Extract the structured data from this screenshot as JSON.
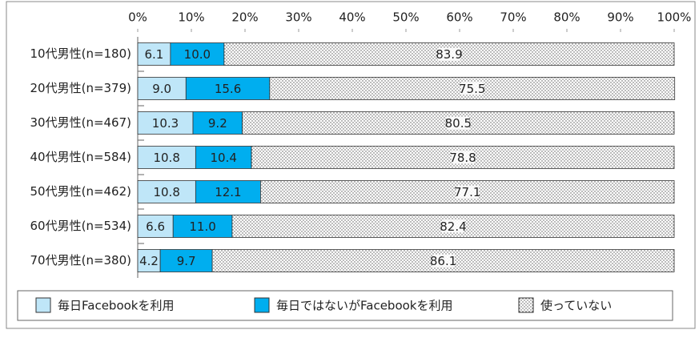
{
  "chart_data": {
    "type": "stacked-bar-horizontal",
    "categories": [
      "10代男性(n=180)",
      "20代男性(n=379)",
      "30代男性(n=467)",
      "40代男性(n=584)",
      "50代男性(n=462)",
      "60代男性(n=534)",
      "70代男性(n=380)"
    ],
    "series": [
      {
        "name": "毎日Facebookを利用",
        "color": "#bfe6f8",
        "values": [
          6.1,
          9.0,
          10.3,
          10.8,
          10.8,
          6.6,
          4.2
        ],
        "value_labels": [
          "6.1",
          "9.0",
          "10.3",
          "10.8",
          "10.8",
          "6.6",
          "4.2"
        ]
      },
      {
        "name": "毎日ではないがFacebookを利用",
        "color": "#00aeef",
        "values": [
          10.0,
          15.6,
          9.2,
          10.4,
          12.1,
          11.0,
          9.7
        ],
        "value_labels": [
          "10.0",
          "15.6",
          "9.2",
          "10.4",
          "12.1",
          "11.0",
          "9.7"
        ]
      },
      {
        "name": "使っていない",
        "color": "#ffffff",
        "pattern": "dots",
        "values": [
          83.9,
          75.5,
          80.5,
          78.8,
          77.1,
          82.4,
          86.1
        ],
        "value_labels": [
          "83.9",
          "75.5",
          "80.5",
          "78.8",
          "77.1",
          "82.4",
          "86.1"
        ]
      }
    ],
    "xlim": [
      0,
      100
    ],
    "xticks": [
      {
        "value": 0,
        "label": "0%"
      },
      {
        "value": 10,
        "label": "10%"
      },
      {
        "value": 20,
        "label": "20%"
      },
      {
        "value": 30,
        "label": "30%"
      },
      {
        "value": 40,
        "label": "40%"
      },
      {
        "value": 50,
        "label": "50%"
      },
      {
        "value": 60,
        "label": "60%"
      },
      {
        "value": 70,
        "label": "70%"
      },
      {
        "value": 80,
        "label": "80%"
      },
      {
        "value": 90,
        "label": "90%"
      },
      {
        "value": 100,
        "label": "100%"
      }
    ],
    "legend": "bottom"
  }
}
